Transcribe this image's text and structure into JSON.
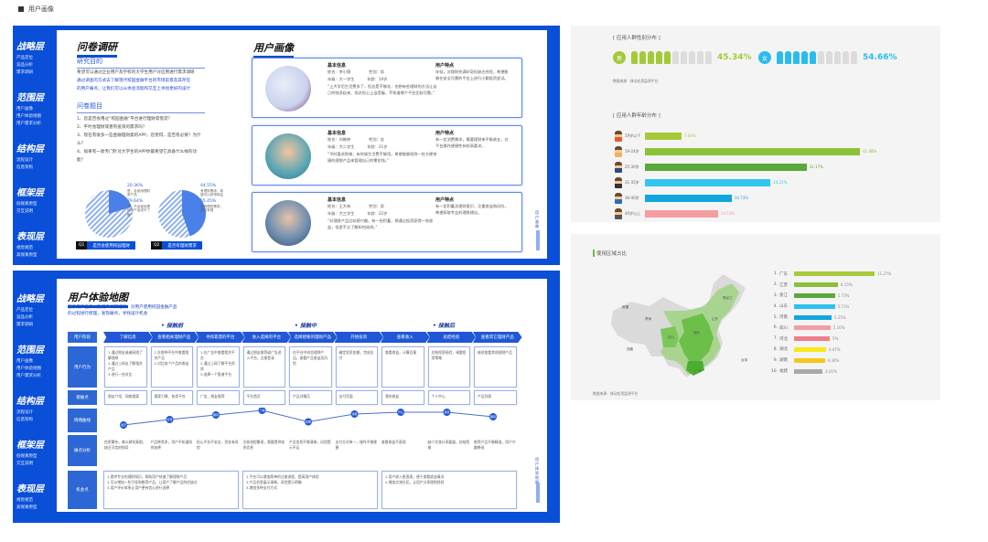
{
  "header": {
    "title": "用户画像"
  },
  "sidebar": [
    {
      "title": "战略层",
      "items": [
        "产品定位",
        "竞品分析",
        "需求调研"
      ]
    },
    {
      "title": "范围层",
      "items": [
        "用户画像",
        "用户体验地图",
        "用户需求分析"
      ]
    },
    {
      "title": "结构层",
      "items": [
        "流程设计",
        "信息架构"
      ]
    },
    {
      "title": "框架层",
      "items": [
        "低保真原型",
        "交互说明"
      ]
    },
    {
      "title": "表现层",
      "items": [
        "视觉规范",
        "高保真原型"
      ]
    }
  ],
  "survey": {
    "title": "问卷调研",
    "purpose_title": "研究目的",
    "purpose": [
      "希望可以通过企业用户及学校的大学生用户对应用进行需求调研",
      "通过调查的方式去了解现代校园金融平台的市场前景及其存在",
      "的用户痛点，让我们可以从体验流程和交互上寻找更好的设计"
    ],
    "questions_title": "问卷题目",
    "questions": [
      "1、您是否会用过“校园金融”平台进行理财或借贷？",
      "2、平时会理财或者有投资的需求吗？",
      "3、现在有很多一些金融理财类的APP，您觉得，是否有必要？为什么？",
      "4、如果有一款专门针对大学生的APP你最希望它具备什么样的功能？"
    ],
    "charts": [
      {
        "button_num": "Q1",
        "button": "是否会使用校园理财",
        "slices": [
          {
            "label": "20.36%",
            "desc": "是，会使用理财类产品",
            "value": 20.36
          },
          {
            "label": "79.64%",
            "desc": "否，不会使用理财类产品或不了解",
            "value": 79.64
          }
        ]
      },
      {
        "button_num": "Q2",
        "button": "是否有理财需求",
        "slices": [
          {
            "label": "44.55%",
            "desc": "有理财需求，希望可以获得收益",
            "value": 44.55
          },
          {
            "label": "55.45%",
            "desc": "没有理财需求，资金有限",
            "value": 55.45
          }
        ]
      }
    ]
  },
  "personas": {
    "title": "用户画像",
    "side_label": "用户画像",
    "cards": [
      {
        "info_title": "基本信息",
        "name": "姓名：李小薇",
        "gender": "性别：男",
        "grade": "年级：大一学生",
        "age": "年龄：19岁",
        "quote": "“上大学后生活费多了，但总是不够花，也想有些理财的方法让自己的钱多起来，但总担心上当受骗，不知道哪个平台比较可靠。”",
        "trait_title": "用户特点",
        "trait": "年轻，对理财充满好奇但缺乏经验，希望能够在安全可靠的平台上进行小额投资尝试。"
      },
      {
        "info_title": "基本信息",
        "name": "姓名：刘晓婷",
        "gender": "性别：女",
        "grade": "年级：大二学生",
        "age": "年龄：21岁",
        "quote": "“平时喜欢购物，有时候生活费不够用，希望能够找到一些方便快捷的理财产品来管理自己的零花钱。”",
        "trait_title": "用户特点",
        "trait": "有一定消费需求，需要理财来平衡收支，对平台操作便捷性有较高要求。"
      },
      {
        "info_title": "基本信息",
        "name": "姓名：王大林",
        "gender": "性别：男",
        "grade": "年级：大三学生",
        "age": "年龄：22岁",
        "quote": "“对理财产品比较感兴趣，有一些积蓄，想通过投资获得一些收益，但是不太了解如何选择。”",
        "trait_title": "用户特点",
        "trait": "有一定积蓄及理财意识，注重收益和风险，希望获取专业的理财建议。"
      }
    ]
  },
  "journey": {
    "title": "用户体验地图",
    "desc": [
      "基于用户画像以及用户调研结果，对用户使用校园金融产品",
      "的过程进行梳理，发现痛点，寻找设计机会"
    ],
    "side_label": "用户体验地图",
    "phases": [
      "接触前",
      "接触中",
      "接触后"
    ],
    "row_labels": [
      "用户阶段",
      "用户行为",
      "接触点",
      "情绪曲线",
      "痛点分析",
      "机会点"
    ],
    "stages": [
      "了解信息",
      "查看相关理财产品",
      "寻找靠谱的平台",
      "进入选择的平台",
      "选择想要的理财产品",
      "开始投资",
      "查看收入",
      "总结经验",
      "查看其它理财产品"
    ],
    "behaviors": [
      "1.通过朋友或者网络了解理财\n2.通过上网去了解相关产品\n3.进行一些对比",
      "1.在各种平台中查看相关产品\n2.对比各个产品的收益",
      "1.在广告中查看相关平台\n2.通过上网了解平台资质\n3.选择一个靠谱平台",
      "通过朋友推荐或广告进入平台，注册登录",
      "在平台中浏览理财产品，查看产品收益及风险",
      "确定投资金额，完成支付",
      "查看收益，计算回报",
      "总结投资经验，调整投资策略",
      "继续查看其他理财产品"
    ],
    "touchpoints": [
      "朋友介绍、网络搜索",
      "搜索引擎、各类平台",
      "广告、朋友推荐",
      "平台首页",
      "产品详情页",
      "支付页面",
      "我的收益",
      "个人中心",
      "产品列表"
    ],
    "emotions": [
      {
        "label": "迷茫",
        "v": 1
      },
      {
        "label": "好奇",
        "v": 2.2
      },
      {
        "label": "期待",
        "v": 3.2
      },
      {
        "label": "了解",
        "v": 4.2
      },
      {
        "label": "犹豫",
        "v": 1.7
      },
      {
        "label": "满意",
        "v": 3.4
      },
      {
        "label": "开心",
        "v": 3.8
      },
      {
        "label": "满足",
        "v": 3.8
      },
      {
        "label": "期待",
        "v": 2.8
      }
    ],
    "pains": [
      "信息繁杂，难以辨别真假，缺乏可信的指导",
      "产品种类多，用户不知道如何选择",
      "担心平台不安全，资金有风险",
      "注册流程繁琐，需要提供较多信息",
      "产品信息不够清晰，风险提示不足",
      "支付方式单一，操作不够便捷",
      "查看收益不直观",
      "缺少交流分享渠道，总结困难",
      "推荐产品不够精准，用户兴趣降低"
    ],
    "opportunities": [
      [
        "1.提供专业的理财知识，帮助用户快速了解理财产品",
        "2.可以增加一些引导和推荐产品，让用户了解产品的优缺点",
        "3.用户评价体系让用户更有信心进行选择"
      ],
      [
        "1.平台可以增加简单的注册流程，提高用户体验",
        "2.产品信息展示清晰，风险提示明确",
        "3.增加多种支付方式"
      ],
      [
        "1.用户收入更直观，便于查看收益情况",
        "2.增加交流社区，让用户分享理财经验"
      ]
    ]
  },
  "gender": {
    "title": "[ 应用人群性别分布 ]",
    "male": {
      "icon": "男",
      "pct": "45.34%",
      "value": 45.34,
      "color": "#a6c93a"
    },
    "female": {
      "icon": "女",
      "pct": "54.66%",
      "value": 54.66,
      "color": "#2bbcee"
    },
    "source": "数据来源：移动应用监测平台"
  },
  "age": {
    "title": "[ 应用人群年龄分布 ]",
    "rows": [
      {
        "label": "19岁以下",
        "value": 7.04,
        "text": "7.04%",
        "color": "#a8c939"
      },
      {
        "label": "19-24岁",
        "value": 41.48,
        "text": "41.48%",
        "color": "#8bc23a"
      },
      {
        "label": "25-30岁",
        "value": 31.17,
        "text": "31.17%",
        "color": "#5aa83a"
      },
      {
        "label": "31-35岁",
        "value": 24.21,
        "text": "24.21%",
        "color": "#2fc7f0"
      },
      {
        "label": "36-40岁",
        "value": 16.73,
        "text": "16.73%",
        "color": "#10a6dc"
      },
      {
        "label": "40岁以上",
        "value": 14.12,
        "text": "14.12%",
        "color": "#f29ea3"
      }
    ]
  },
  "region": {
    "title": "使用区域占比",
    "source": "数据来源：移动应用监测平台",
    "rows": [
      {
        "rank": "1.",
        "label": "广东",
        "value": 11.27,
        "text": "11.27%",
        "color": "#a8c939"
      },
      {
        "rank": "2.",
        "label": "江苏",
        "value": 6.15,
        "text": "6.15%",
        "color": "#8bbf3a"
      },
      {
        "rank": "3.",
        "label": "浙江",
        "value": 5.73,
        "text": "5.73%",
        "color": "#5aa83a"
      },
      {
        "rank": "4.",
        "label": "山东",
        "value": 5.71,
        "text": "5.71%",
        "color": "#2fc0ee"
      },
      {
        "rank": "5.",
        "label": "河南",
        "value": 5.25,
        "text": "5.25%",
        "color": "#10a8dc"
      },
      {
        "rank": "6.",
        "label": "四川",
        "value": 5.1,
        "text": "5.10%",
        "color": "#f29ea3"
      },
      {
        "rank": "7.",
        "label": "河北",
        "value": 5,
        "text": "5%",
        "color": "#ef7f8a"
      },
      {
        "rank": "8.",
        "label": "湖北",
        "value": 4.47,
        "text": "4.47%",
        "color": "#f7e81a"
      },
      {
        "rank": "9.",
        "label": "湖南",
        "value": 4.3,
        "text": "4.30%",
        "color": "#f6c818"
      },
      {
        "rank": "10.",
        "label": "福建",
        "value": 4.01,
        "text": "4.01%",
        "color": "#a9a9a9"
      }
    ],
    "map_labels": [
      "新疆",
      "西藏",
      "青海",
      "四川",
      "广东",
      "黑龙江",
      "山东",
      "湖北",
      "台湾"
    ]
  },
  "colors": {
    "brand": "#0a4fd8"
  }
}
